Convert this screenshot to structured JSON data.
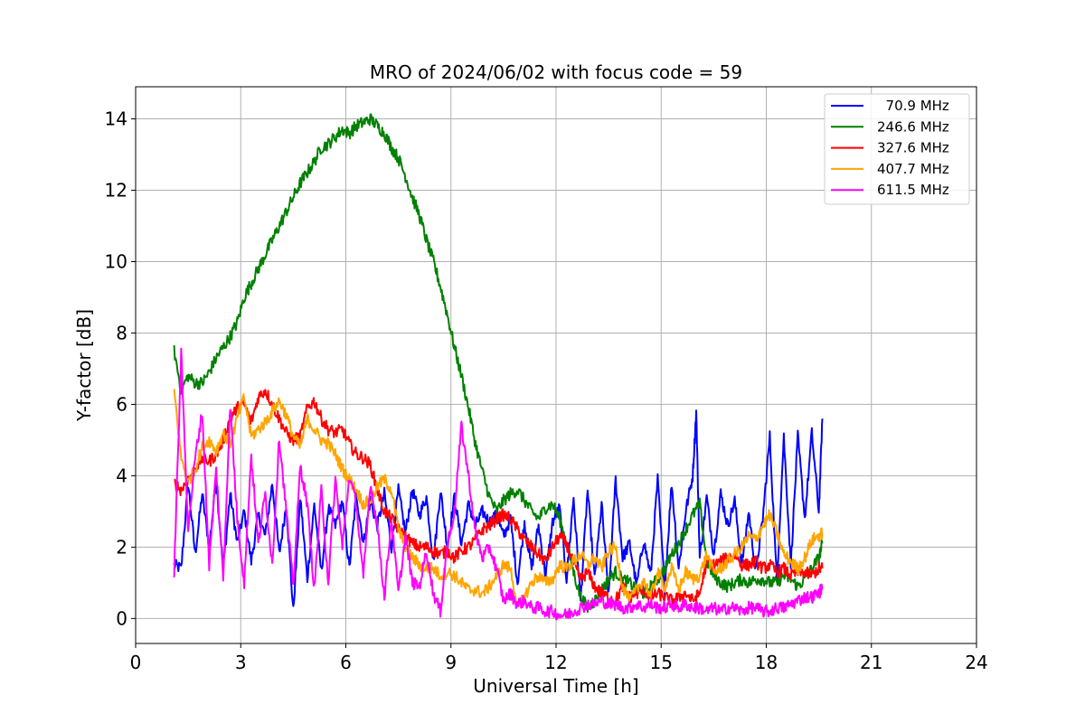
{
  "chart_data": {
    "type": "line",
    "title": "MRO of 2024/06/02 with focus code = 59",
    "xlabel": "Universal Time [h]",
    "ylabel": "Y-factor [dB]",
    "xlim": [
      0,
      24
    ],
    "ylim": [
      -0.7,
      14.9
    ],
    "xticks": [
      "0",
      "3",
      "6",
      "9",
      "12",
      "15",
      "18",
      "21",
      "24"
    ],
    "yticks": [
      "0",
      "2",
      "4",
      "6",
      "8",
      "10",
      "12",
      "14"
    ],
    "grid": true,
    "legend_position": "top-right",
    "series": [
      {
        "name": "  70.9 MHz",
        "color": "#0000ff",
        "x": [
          1.1,
          1.3,
          1.5,
          1.7,
          1.9,
          2.1,
          2.3,
          2.5,
          2.7,
          2.9,
          3.1,
          3.3,
          3.5,
          3.7,
          3.9,
          4.1,
          4.3,
          4.5,
          4.7,
          4.9,
          5.1,
          5.3,
          5.5,
          5.7,
          5.9,
          6.1,
          6.3,
          6.5,
          6.7,
          6.9,
          7.1,
          7.3,
          7.5,
          7.7,
          7.9,
          8.1,
          8.3,
          8.5,
          8.7,
          8.9,
          9.1,
          9.3,
          9.5,
          9.7,
          9.9,
          10.1,
          10.3,
          10.5,
          10.7,
          10.9,
          11.1,
          11.3,
          11.5,
          11.7,
          11.9,
          12.1,
          12.3,
          12.5,
          12.7,
          12.9,
          13.1,
          13.3,
          13.5,
          13.7,
          13.9,
          14.1,
          14.3,
          14.5,
          14.7,
          14.9,
          15.1,
          15.3,
          15.5,
          15.7,
          15.9,
          16.0,
          16.1,
          16.3,
          16.5,
          16.7,
          16.9,
          17.1,
          17.3,
          17.5,
          17.7,
          17.9,
          18.1,
          18.3,
          18.5,
          18.7,
          18.9,
          19.1,
          19.3,
          19.5,
          19.6
        ],
        "values": [
          1.5,
          1.4,
          3.8,
          1.8,
          3.5,
          2.0,
          3.9,
          1.4,
          3.5,
          2.1,
          3.0,
          1.6,
          2.9,
          2.3,
          3.8,
          1.8,
          3.2,
          0.2,
          3.4,
          1.1,
          3.2,
          1.3,
          3.1,
          2.6,
          3.3,
          1.4,
          3.5,
          2.1,
          3.3,
          2.6,
          3.5,
          2.0,
          3.6,
          2.4,
          3.6,
          2.9,
          3.4,
          1.6,
          3.6,
          2.0,
          3.4,
          2.1,
          3.2,
          2.6,
          3.0,
          2.7,
          2.9,
          2.3,
          2.8,
          1.0,
          2.7,
          1.4,
          2.6,
          1.2,
          2.7,
          3.1,
          1.1,
          3.4,
          0.5,
          3.6,
          1.1,
          3.2,
          0.6,
          3.9,
          1.7,
          2.1,
          0.9,
          2.2,
          1.2,
          3.9,
          0.8,
          3.8,
          1.4,
          3.0,
          4.0,
          5.8,
          1.7,
          3.4,
          1.8,
          3.5,
          2.6,
          3.3,
          1.5,
          3.0,
          1.3,
          2.8,
          5.1,
          1.0,
          5.1,
          1.5,
          5.1,
          2.8,
          5.2,
          3.0,
          5.6
        ]
      },
      {
        "name": "246.6 MHz",
        "color": "#008000",
        "x": [
          1.1,
          1.3,
          1.5,
          1.7,
          1.9,
          2.1,
          2.3,
          2.5,
          2.7,
          2.9,
          3.1,
          3.3,
          3.5,
          3.7,
          3.9,
          4.1,
          4.3,
          4.5,
          4.7,
          4.9,
          5.1,
          5.3,
          5.5,
          5.7,
          5.9,
          6.1,
          6.3,
          6.5,
          6.7,
          6.9,
          7.1,
          7.3,
          7.5,
          7.7,
          7.9,
          8.1,
          8.3,
          8.5,
          8.7,
          8.9,
          9.1,
          9.3,
          9.5,
          9.7,
          9.9,
          10.1,
          10.3,
          10.5,
          10.7,
          10.9,
          11.1,
          11.3,
          11.5,
          11.7,
          11.9,
          12.1,
          12.3,
          12.5,
          12.7,
          12.9,
          13.1,
          13.3,
          13.5,
          13.7,
          13.9,
          14.1,
          14.3,
          14.5,
          14.7,
          14.9,
          15.1,
          15.3,
          15.5,
          15.7,
          15.9,
          16.1,
          16.3,
          16.5,
          16.7,
          16.9,
          17.1,
          17.3,
          17.5,
          17.7,
          17.9,
          18.1,
          18.3,
          18.5,
          18.7,
          18.9,
          19.1,
          19.3,
          19.5,
          19.6
        ],
        "values": [
          7.5,
          6.4,
          6.8,
          6.6,
          6.6,
          6.9,
          7.3,
          7.6,
          7.9,
          8.3,
          9.0,
          9.4,
          9.8,
          10.2,
          10.6,
          11.0,
          11.4,
          11.8,
          12.2,
          12.5,
          12.8,
          13.2,
          13.3,
          13.5,
          13.7,
          13.6,
          13.8,
          13.9,
          14.0,
          13.8,
          13.6,
          13.2,
          12.9,
          12.4,
          11.8,
          11.3,
          10.6,
          10.0,
          9.3,
          8.5,
          7.6,
          6.8,
          5.9,
          4.9,
          4.1,
          3.4,
          3.0,
          3.3,
          3.5,
          3.6,
          3.3,
          3.0,
          2.8,
          3.1,
          3.2,
          2.8,
          2.1,
          1.3,
          0.6,
          0.3,
          0.5,
          0.8,
          1.1,
          1.3,
          1.1,
          1.0,
          0.8,
          0.7,
          0.9,
          1.1,
          1.4,
          1.8,
          2.1,
          2.5,
          2.9,
          3.2,
          1.6,
          1.2,
          1.0,
          0.9,
          1.0,
          1.1,
          1.0,
          1.1,
          1.1,
          1.0,
          1.0,
          1.2,
          1.1,
          0.9,
          1.1,
          1.4,
          1.7,
          2.1
        ]
      },
      {
        "name": "327.6 MHz",
        "color": "#ff0000",
        "x": [
          1.1,
          1.3,
          1.5,
          1.7,
          1.9,
          2.1,
          2.3,
          2.5,
          2.7,
          2.9,
          3.1,
          3.3,
          3.5,
          3.7,
          3.9,
          4.1,
          4.3,
          4.5,
          4.7,
          4.9,
          5.1,
          5.3,
          5.5,
          5.7,
          5.9,
          6.1,
          6.3,
          6.5,
          6.7,
          6.9,
          7.1,
          7.3,
          7.5,
          7.7,
          7.9,
          8.1,
          8.3,
          8.5,
          8.7,
          8.9,
          9.1,
          9.3,
          9.5,
          9.7,
          9.9,
          10.1,
          10.3,
          10.5,
          10.7,
          10.9,
          11.1,
          11.3,
          11.5,
          11.7,
          11.9,
          12.1,
          12.3,
          12.5,
          12.7,
          12.9,
          13.1,
          13.3,
          13.5,
          13.7,
          13.9,
          14.1,
          14.3,
          14.5,
          14.7,
          14.9,
          15.1,
          15.3,
          15.5,
          15.7,
          15.9,
          16.1,
          16.3,
          16.5,
          16.7,
          16.9,
          17.1,
          17.3,
          17.5,
          17.7,
          17.9,
          18.1,
          18.3,
          18.5,
          18.7,
          18.9,
          19.1,
          19.3,
          19.5,
          19.6
        ],
        "values": [
          3.8,
          3.6,
          3.9,
          4.2,
          4.5,
          4.4,
          4.6,
          5.0,
          5.6,
          5.9,
          6.0,
          5.5,
          6.2,
          6.4,
          6.0,
          5.6,
          5.2,
          5.0,
          5.1,
          5.9,
          6.1,
          5.6,
          5.3,
          5.2,
          5.3,
          4.9,
          4.6,
          4.5,
          4.3,
          3.6,
          3.0,
          2.8,
          2.5,
          2.3,
          2.1,
          2.0,
          2.0,
          1.9,
          1.8,
          1.9,
          1.7,
          1.9,
          2.0,
          2.2,
          2.5,
          2.6,
          2.8,
          2.9,
          2.8,
          2.5,
          2.2,
          2.0,
          1.8,
          1.6,
          2.0,
          2.3,
          2.1,
          1.5,
          1.1,
          1.3,
          0.9,
          0.7,
          0.6,
          0.5,
          0.9,
          0.6,
          0.7,
          0.8,
          0.6,
          0.7,
          0.6,
          0.5,
          0.6,
          0.7,
          0.5,
          0.7,
          1.6,
          1.5,
          1.6,
          1.7,
          1.8,
          1.5,
          1.5,
          1.6,
          1.4,
          1.5,
          1.3,
          1.4,
          1.2,
          1.3,
          1.3,
          1.2,
          1.4,
          1.4
        ]
      },
      {
        "name": "407.7 MHz",
        "color": "#ffa500",
        "x": [
          1.1,
          1.3,
          1.5,
          1.7,
          1.9,
          2.1,
          2.3,
          2.5,
          2.7,
          2.9,
          3.1,
          3.3,
          3.5,
          3.7,
          3.9,
          4.1,
          4.3,
          4.5,
          4.7,
          4.9,
          5.1,
          5.3,
          5.5,
          5.7,
          5.9,
          6.1,
          6.3,
          6.5,
          6.7,
          6.9,
          7.1,
          7.3,
          7.5,
          7.7,
          7.9,
          8.1,
          8.3,
          8.5,
          8.7,
          8.9,
          9.1,
          9.3,
          9.5,
          9.7,
          9.9,
          10.1,
          10.3,
          10.5,
          10.7,
          10.9,
          11.1,
          11.3,
          11.5,
          11.7,
          11.9,
          12.1,
          12.3,
          12.5,
          12.7,
          12.9,
          13.1,
          13.3,
          13.5,
          13.7,
          13.9,
          14.1,
          14.3,
          14.5,
          14.7,
          14.9,
          15.1,
          15.3,
          15.5,
          15.7,
          15.9,
          16.1,
          16.3,
          16.5,
          16.7,
          16.9,
          17.1,
          17.3,
          17.5,
          17.7,
          17.9,
          18.1,
          18.3,
          18.5,
          18.7,
          18.9,
          19.1,
          19.3,
          19.5,
          19.6
        ],
        "values": [
          6.4,
          4.5,
          3.8,
          4.2,
          4.8,
          5.0,
          4.7,
          5.2,
          4.9,
          5.6,
          6.2,
          5.1,
          5.3,
          5.5,
          5.8,
          6.1,
          5.7,
          5.1,
          4.8,
          5.6,
          5.3,
          5.0,
          4.9,
          4.6,
          4.2,
          3.9,
          3.6,
          3.2,
          3.3,
          3.7,
          3.9,
          3.6,
          2.5,
          2.0,
          1.7,
          1.5,
          1.4,
          1.4,
          1.2,
          1.3,
          1.2,
          1.0,
          0.8,
          0.8,
          0.7,
          0.9,
          1.2,
          1.5,
          1.4,
          0.3,
          0.6,
          1.0,
          1.2,
          1.0,
          1.1,
          1.5,
          1.4,
          1.6,
          1.8,
          1.5,
          1.7,
          1.4,
          1.9,
          2.0,
          0.9,
          0.5,
          0.8,
          1.1,
          0.6,
          1.3,
          0.9,
          1.4,
          0.8,
          1.3,
          1.1,
          1.2,
          1.8,
          1.3,
          1.4,
          1.6,
          1.8,
          2.0,
          2.3,
          2.2,
          2.6,
          2.9,
          2.4,
          1.8,
          1.6,
          1.4,
          1.7,
          2.2,
          2.3,
          2.4
        ]
      },
      {
        "name": "611.5 MHz",
        "color": "#ff00ff",
        "x": [
          1.1,
          1.3,
          1.5,
          1.7,
          1.9,
          2.1,
          2.3,
          2.5,
          2.7,
          2.9,
          3.1,
          3.3,
          3.5,
          3.7,
          3.9,
          4.1,
          4.3,
          4.5,
          4.7,
          4.9,
          5.1,
          5.3,
          5.5,
          5.7,
          5.9,
          6.1,
          6.3,
          6.5,
          6.7,
          6.9,
          7.1,
          7.3,
          7.5,
          7.7,
          7.9,
          8.1,
          8.3,
          8.5,
          8.7,
          8.9,
          9.1,
          9.3,
          9.5,
          9.7,
          9.9,
          10.1,
          10.3,
          10.5,
          10.7,
          10.9,
          11.1,
          11.3,
          11.5,
          11.7,
          11.9,
          12.1,
          12.3,
          12.5,
          12.7,
          12.9,
          13.1,
          13.3,
          13.5,
          13.7,
          13.9,
          14.1,
          14.3,
          14.5,
          14.7,
          14.9,
          15.1,
          15.3,
          15.5,
          15.7,
          15.9,
          16.1,
          16.3,
          16.5,
          16.7,
          16.9,
          17.1,
          17.3,
          17.5,
          17.7,
          17.9,
          18.1,
          18.3,
          18.5,
          18.7,
          18.9,
          19.1,
          19.3,
          19.5,
          19.6
        ],
        "values": [
          1.3,
          7.4,
          2.5,
          4.5,
          5.8,
          1.5,
          4.2,
          1.1,
          6.0,
          2.8,
          1.0,
          4.6,
          2.1,
          3.5,
          1.5,
          5.1,
          3.0,
          0.9,
          4.3,
          3.2,
          0.8,
          3.6,
          1.0,
          3.9,
          2.0,
          4.0,
          3.2,
          1.1,
          3.8,
          2.6,
          0.6,
          2.8,
          0.7,
          2.3,
          1.0,
          0.9,
          1.9,
          0.7,
          0.2,
          2.1,
          3.0,
          5.4,
          4.0,
          2.4,
          1.7,
          2.0,
          1.4,
          0.5,
          0.7,
          0.4,
          0.5,
          0.3,
          0.3,
          0.2,
          0.2,
          0.1,
          0.1,
          0.2,
          0.3,
          0.4,
          0.4,
          0.5,
          0.4,
          0.4,
          0.3,
          0.3,
          0.4,
          0.3,
          0.4,
          0.3,
          0.3,
          0.4,
          0.3,
          0.4,
          0.3,
          0.3,
          0.2,
          0.3,
          0.2,
          0.3,
          0.3,
          0.2,
          0.3,
          0.3,
          0.2,
          0.2,
          0.3,
          0.3,
          0.4,
          0.5,
          0.6,
          0.6,
          0.7,
          0.9
        ]
      }
    ]
  }
}
